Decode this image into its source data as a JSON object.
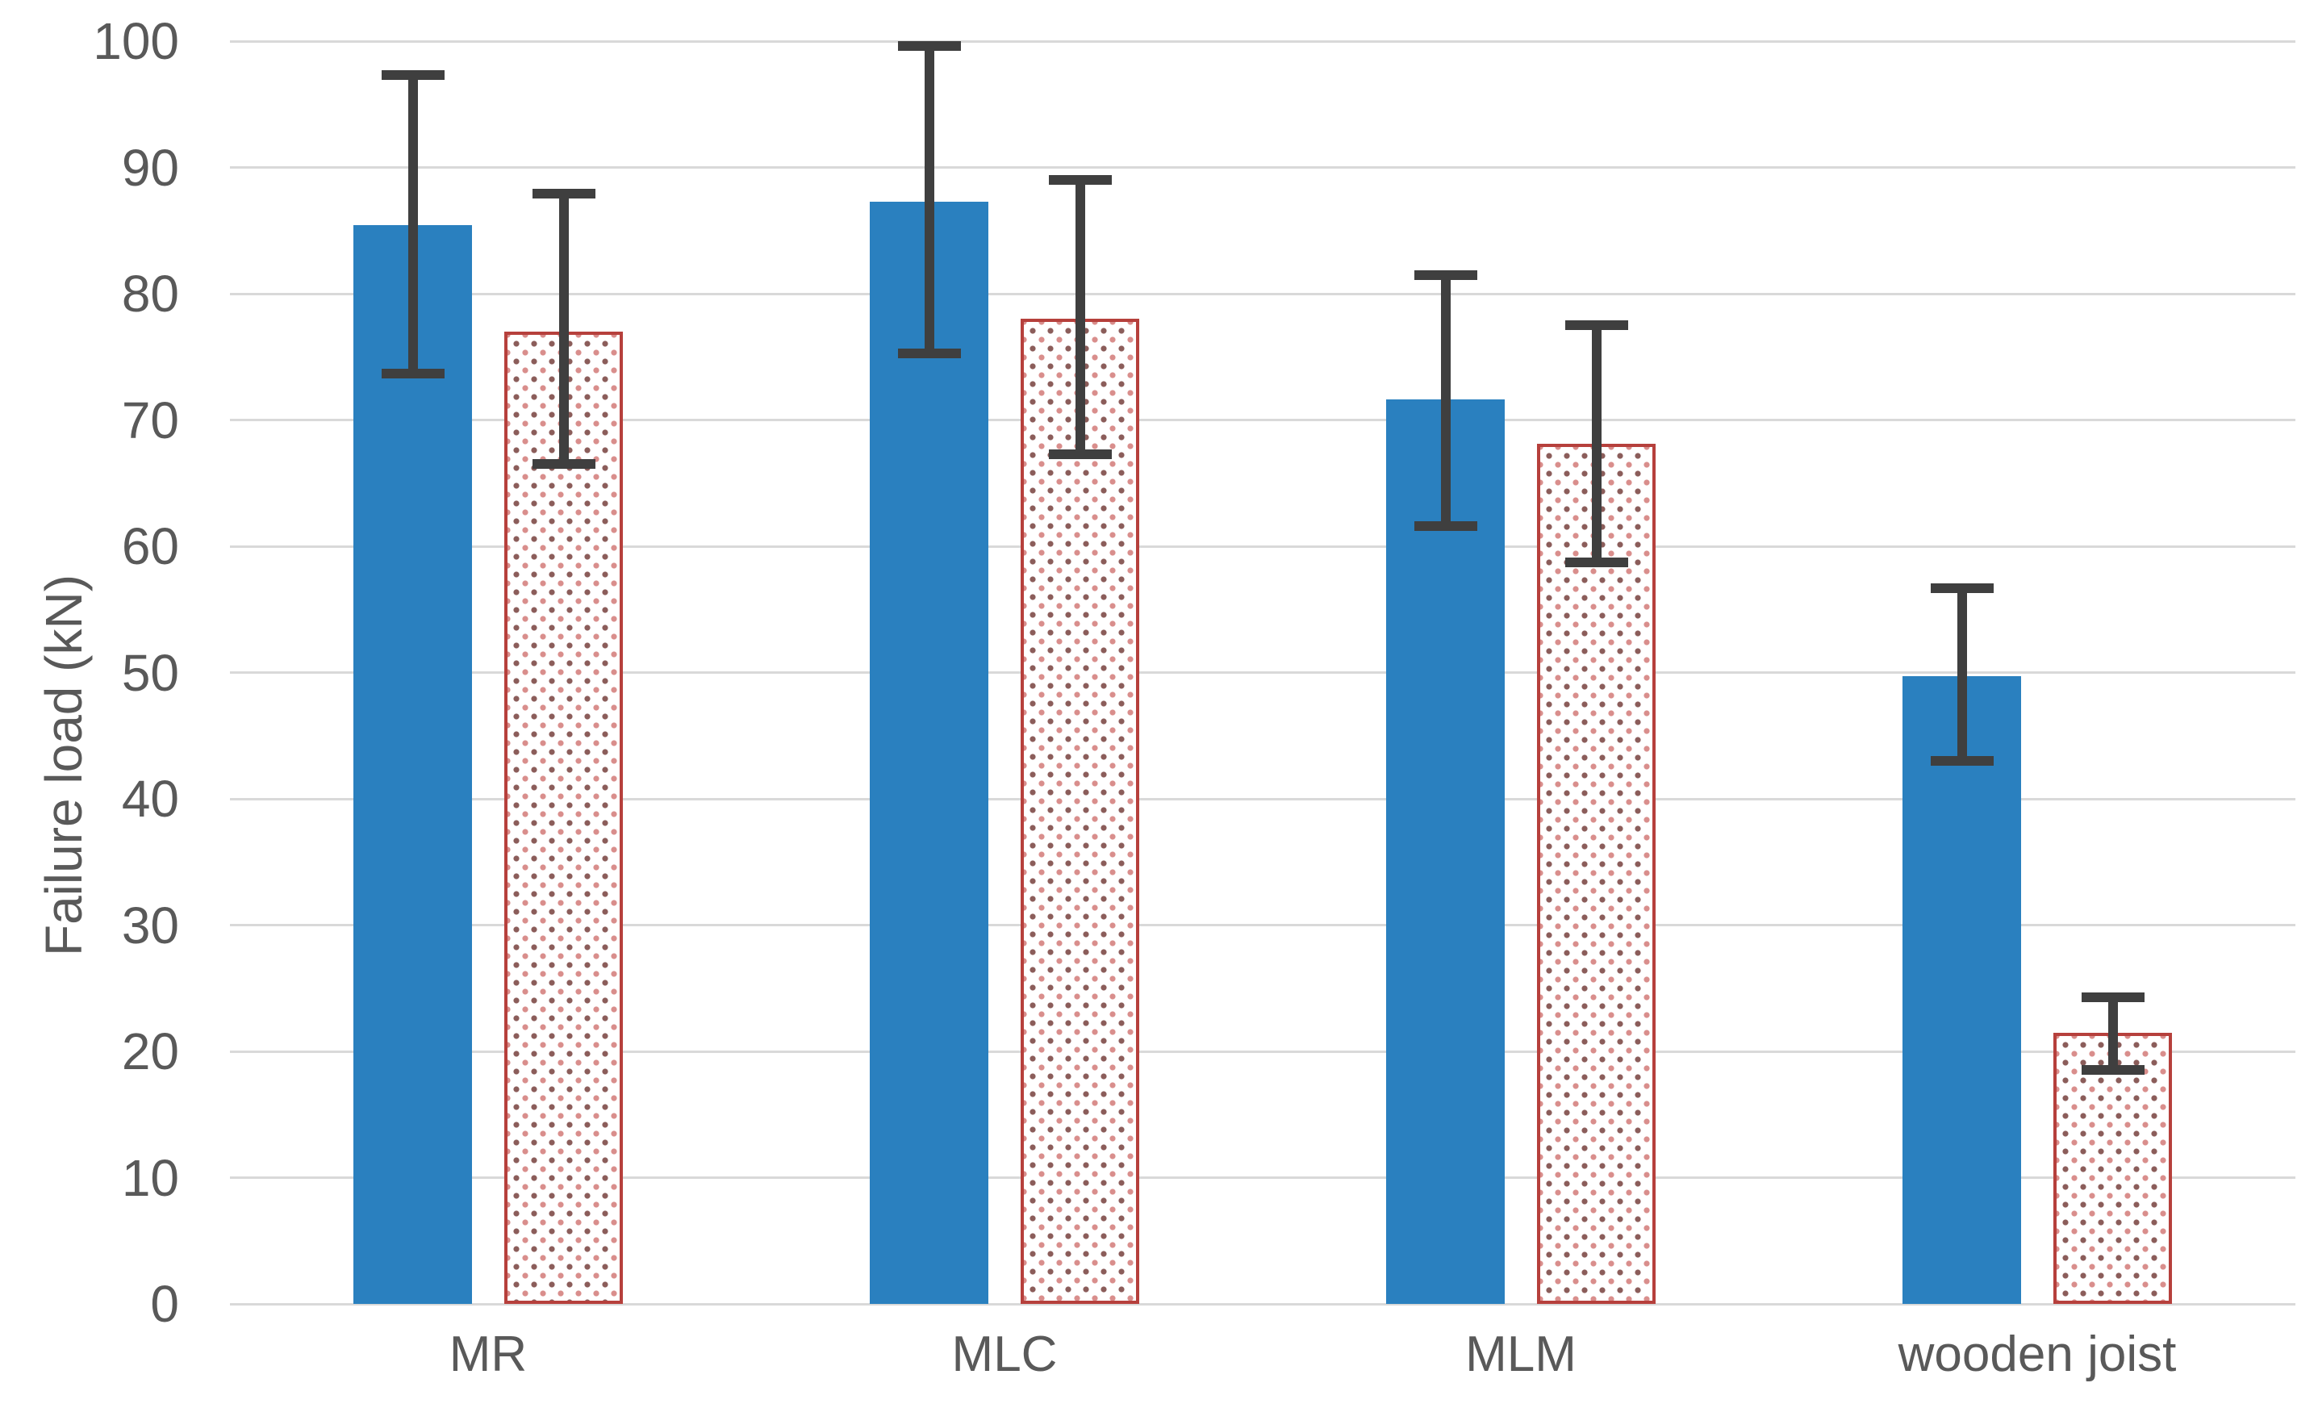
{
  "figure": {
    "background_color": "#FFFFFF"
  },
  "chart_data": {
    "type": "bar",
    "title": "",
    "xlabel": "",
    "ylabel": "Failure load (kN)",
    "ylim": [
      0,
      100
    ],
    "yticks": [
      0,
      10,
      20,
      30,
      40,
      50,
      60,
      70,
      80,
      90,
      100
    ],
    "grid": true,
    "legend": "none",
    "categories": [
      "MR",
      "MLC",
      "MLM",
      "wooden joist"
    ],
    "series": [
      {
        "name": "solid-blue",
        "style": "solid-fill",
        "color": "#2A80BF",
        "values": [
          85.4,
          87.3,
          71.6,
          49.7
        ],
        "error_upper": [
          97.3,
          99.6,
          81.5,
          56.7
        ],
        "error_lower": [
          73.7,
          75.3,
          61.6,
          43.0
        ]
      },
      {
        "name": "dotted-red",
        "style": "dot-pattern",
        "fill_color": "#FFFFFF",
        "border_color": "#B6403C",
        "dot_colors": [
          "#8B5D5A",
          "#D98E8C"
        ],
        "values": [
          77.0,
          78.0,
          68.1,
          21.5
        ],
        "error_upper": [
          87.9,
          89.0,
          77.5,
          24.3
        ],
        "error_lower": [
          66.5,
          67.3,
          58.7,
          18.5
        ]
      }
    ],
    "error_bar_color": "#3F3F3F",
    "gridline_color": "#D9D9D9",
    "tick_label_color": "#595959"
  }
}
